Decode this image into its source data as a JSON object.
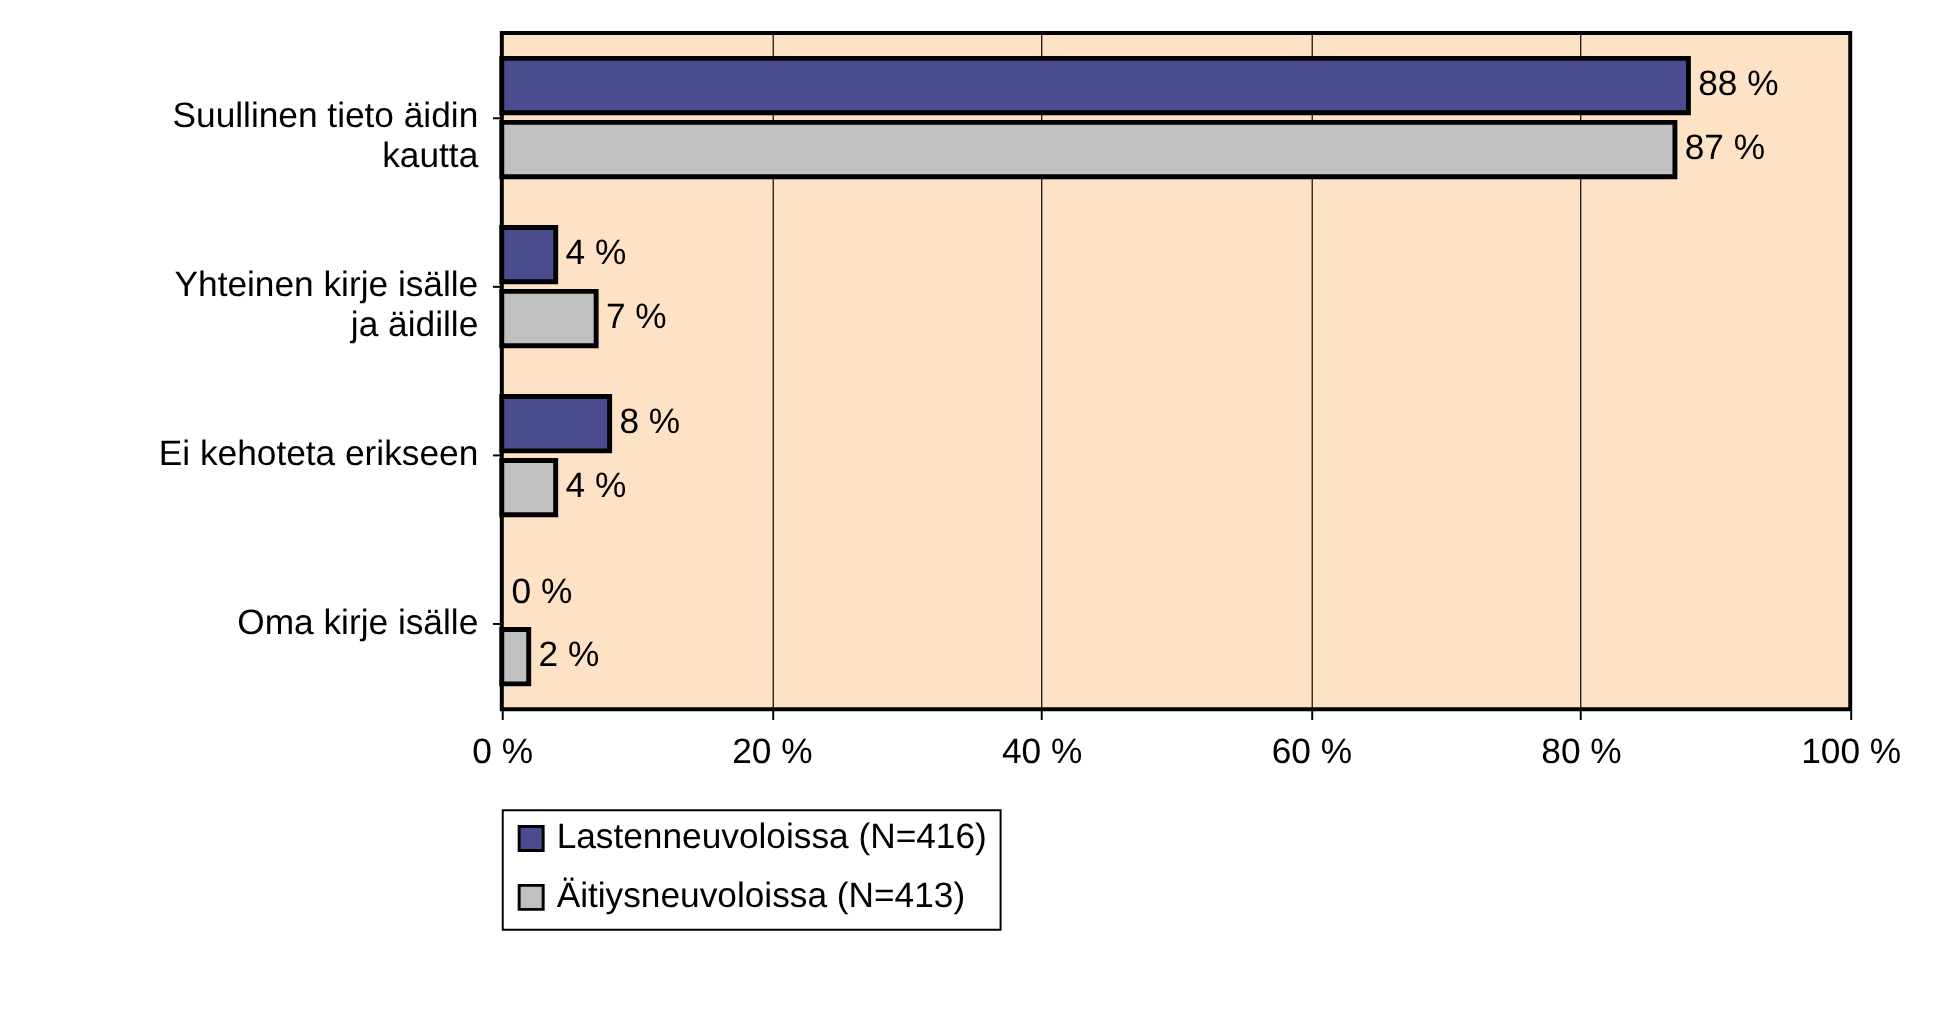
{
  "chart_data": {
    "type": "bar",
    "orientation": "horizontal",
    "categories": [
      "Suullinen tieto äidin kautta",
      "Yhteinen kirje isälle ja äidille",
      "Ei kehoteta erikseen",
      "Oma kirje isälle"
    ],
    "series": [
      {
        "name": "Lastenneuvoloissa (N=416)",
        "color": "#4b4b8f",
        "values": [
          88,
          4,
          8,
          0
        ],
        "value_labels": [
          "88 %",
          "4 %",
          "8 %",
          "0 %"
        ]
      },
      {
        "name": "Äitiysneuvoloissa (N=413)",
        "color": "#c0c0c0",
        "values": [
          87,
          7,
          4,
          2
        ],
        "value_labels": [
          "87 %",
          "7 %",
          "4 %",
          "2 %"
        ]
      }
    ],
    "xlim": [
      0,
      100
    ],
    "xticks": [
      {
        "value": 0,
        "label": "0 %"
      },
      {
        "value": 20,
        "label": "20 %"
      },
      {
        "value": 40,
        "label": "40 %"
      },
      {
        "value": 60,
        "label": "60 %"
      },
      {
        "value": 80,
        "label": "80 %"
      },
      {
        "value": 100,
        "label": "100 %"
      }
    ],
    "grid": "x",
    "legend": "bottom"
  }
}
